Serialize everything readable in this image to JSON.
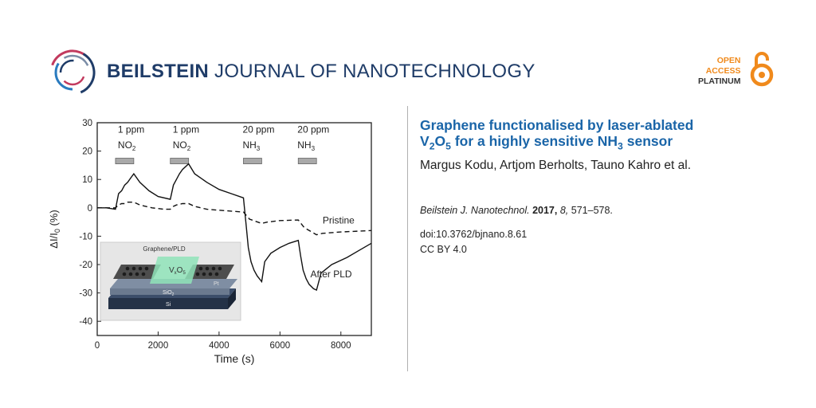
{
  "header": {
    "journal_bold": "BEILSTEIN",
    "journal_rest": "JOURNAL OF NANOTECHNOLOGY",
    "oa_line1": "OPEN",
    "oa_line2": "ACCESS",
    "oa_line3": "PLATINUM",
    "logo_icon": "beilstein-ring-logo",
    "oa_icon": "open-padlock-icon",
    "accent_blue": "#1a65a8",
    "oa_orange": "#f08a1c"
  },
  "article": {
    "title_line1": "Graphene functionalised by laser-ablated",
    "title_v": "V",
    "title_v_sub": "2",
    "title_o": "O",
    "title_o_sub": "5",
    "title_mid": " for a highly sensitive NH",
    "title_nh_sub": "3",
    "title_end": " sensor",
    "authors": "Margus Kodu, Artjom Berholts, Tauno Kahro et al.",
    "journal_abbrev": "Beilstein J. Nanotechnol.",
    "year": "2017,",
    "volume": "8,",
    "pages": "571–578.",
    "doi": "doi:10.3762/bjnano.8.61",
    "license": "CC BY 4.0"
  },
  "chart_data": {
    "type": "line",
    "xlabel": "Time (s)",
    "ylabel_main": "ΔI/I",
    "ylabel_sub": "0",
    "ylabel_unit": " (%)",
    "xlim": [
      0,
      9000
    ],
    "ylim": [
      -45,
      30
    ],
    "xticks": [
      0,
      2000,
      4000,
      6000,
      8000
    ],
    "yticks": [
      30,
      20,
      10,
      0,
      -10,
      -20,
      -30,
      -40
    ],
    "pulses": [
      {
        "label_top": "1 ppm",
        "gas": "NO",
        "gas_sub": "2",
        "x_start": 600,
        "x_end": 1200
      },
      {
        "label_top": "1 ppm",
        "gas": "NO",
        "gas_sub": "2",
        "x_start": 2400,
        "x_end": 3000
      },
      {
        "label_top": "20 ppm",
        "gas": "NH",
        "gas_sub": "3",
        "x_start": 4800,
        "x_end": 5400
      },
      {
        "label_top": "20 ppm",
        "gas": "NH",
        "gas_sub": "3",
        "x_start": 6600,
        "x_end": 7200
      }
    ],
    "series": [
      {
        "name": "Pristine",
        "style": "dashed",
        "x": [
          0,
          600,
          700,
          800,
          900,
          1000,
          1200,
          1400,
          1800,
          2200,
          2400,
          2500,
          2600,
          2800,
          3000,
          3200,
          3600,
          4200,
          4800,
          5000,
          5400,
          5600,
          6000,
          6600,
          6800,
          7200,
          7400,
          8000,
          9000
        ],
        "y": [
          0,
          0,
          1,
          1.5,
          1.5,
          2,
          2,
          1,
          0,
          -0.5,
          -0.5,
          0.5,
          1,
          1.5,
          1.5,
          0.5,
          -0.5,
          -1,
          -1.5,
          -4,
          -5.5,
          -5,
          -4.5,
          -4.3,
          -7,
          -9.5,
          -9,
          -8.5,
          -8
        ]
      },
      {
        "name": "After PLD",
        "style": "solid",
        "x": [
          0,
          300,
          600,
          700,
          800,
          900,
          1000,
          1100,
          1200,
          1400,
          1700,
          2000,
          2400,
          2500,
          2600,
          2700,
          2800,
          2900,
          3000,
          3200,
          3600,
          4000,
          4400,
          4800,
          4880,
          4960,
          5050,
          5150,
          5250,
          5400,
          5500,
          5700,
          6000,
          6300,
          6600,
          6680,
          6760,
          6860,
          6960,
          7100,
          7200,
          7350,
          7700,
          8200,
          8600,
          9000
        ],
        "y": [
          0,
          0,
          -0.5,
          5,
          6,
          8,
          9,
          10.5,
          12,
          9,
          6,
          4,
          3,
          8,
          10,
          12,
          13.5,
          14.5,
          15.5,
          12,
          9,
          6.5,
          5,
          3.5,
          -5,
          -14,
          -19,
          -22,
          -24,
          -26,
          -19,
          -16,
          -14,
          -12.5,
          -11.5,
          -17,
          -22,
          -25,
          -27,
          -28.5,
          -29,
          -23,
          -20,
          -17.5,
          -15,
          -12.5
        ]
      }
    ],
    "annotations": {
      "pristine_label": "Pristine",
      "after_label": "After PLD"
    },
    "inset": {
      "top_label": "Graphene/PLD",
      "v_label": "V",
      "v_sub": "x",
      "o_label": "O",
      "o_sub": "5",
      "pt_label": "Pt",
      "sio_label": "SiO",
      "sio_sub": "2",
      "si_label": "Si"
    },
    "grid": false
  }
}
